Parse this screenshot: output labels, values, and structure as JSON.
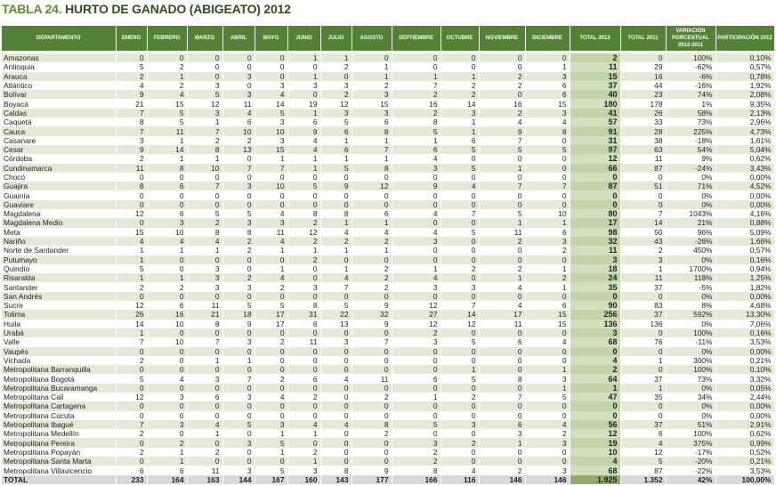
{
  "title": {
    "number": "TABLA 24.",
    "text": "HURTO DE GANADO (ABIGEATO) 2012"
  },
  "colors": {
    "header": "#538135",
    "stripe": "#e3ebd6",
    "total_2012": "#c2d3a8",
    "total_row": "#d9d9d9"
  },
  "columns": [
    "DEPARTAMENTO",
    "ENERO",
    "FEBRERO",
    "MARZO",
    "ABRIL",
    "MAYO",
    "JUNIO",
    "JULIO",
    "AGOSTO",
    "SEPTIEMBRE",
    "OCTUBRE",
    "NOVIEMBRE",
    "DICIEMBRE",
    "TOTAL 2012",
    "TOTAL 2011",
    "VARIACIÓN PORCENTUAL 2012-2011",
    "PARTICIPACIÓN 2012"
  ],
  "rows": [
    [
      "Amazonas",
      "0",
      "0",
      "0",
      "0",
      "0",
      "1",
      "1",
      "0",
      "0",
      "0",
      "0",
      "0",
      "2",
      "0",
      "100%",
      "0,10%"
    ],
    [
      "Antioquia",
      "5",
      "2",
      "0",
      "0",
      "0",
      "0",
      "2",
      "1",
      "0",
      "0",
      "0",
      "1",
      "11",
      "29",
      "-62%",
      "0,57%"
    ],
    [
      "Arauca",
      "2",
      "1",
      "0",
      "3",
      "0",
      "1",
      "0",
      "1",
      "1",
      "1",
      "2",
      "3",
      "15",
      "16",
      "-6%",
      "0,78%"
    ],
    [
      "Atlántico",
      "4",
      "2",
      "3",
      "0",
      "3",
      "3",
      "3",
      "2",
      "7",
      "2",
      "2",
      "6",
      "37",
      "44",
      "-16%",
      "1,92%"
    ],
    [
      "Bolívar",
      "9",
      "4",
      "5",
      "3",
      "4",
      "0",
      "2",
      "3",
      "2",
      "2",
      "0",
      "6",
      "40",
      "23",
      "74%",
      "2,08%"
    ],
    [
      "Boyacá",
      "21",
      "15",
      "12",
      "11",
      "14",
      "19",
      "12",
      "15",
      "16",
      "14",
      "16",
      "15",
      "180",
      "178",
      "1%",
      "9,35%"
    ],
    [
      "Caldas",
      "7",
      "5",
      "3",
      "4",
      "5",
      "1",
      "3",
      "3",
      "2",
      "3",
      "2",
      "3",
      "41",
      "26",
      "58%",
      "2,13%"
    ],
    [
      "Caquetá",
      "8",
      "5",
      "1",
      "6",
      "3",
      "6",
      "5",
      "6",
      "8",
      "1",
      "4",
      "4",
      "57",
      "33",
      "73%",
      "2,96%"
    ],
    [
      "Cauca",
      "7",
      "11",
      "7",
      "10",
      "10",
      "9",
      "6",
      "8",
      "5",
      "1",
      "9",
      "8",
      "91",
      "28",
      "225%",
      "4,73%"
    ],
    [
      "Casanare",
      "3",
      "1",
      "2",
      "2",
      "3",
      "4",
      "1",
      "1",
      "1",
      "6",
      "7",
      "0",
      "31",
      "38",
      "-18%",
      "1,61%"
    ],
    [
      "Cesar",
      "9",
      "14",
      "8",
      "13",
      "15",
      "4",
      "6",
      "7",
      "6",
      "5",
      "5",
      "5",
      "97",
      "63",
      "54%",
      "5,04%"
    ],
    [
      "Córdoba",
      "2",
      "1",
      "1",
      "0",
      "1",
      "1",
      "1",
      "1",
      "4",
      "0",
      "0",
      "0",
      "12",
      "11",
      "9%",
      "0,62%"
    ],
    [
      "Cundinamarca",
      "11",
      "8",
      "10",
      "7",
      "7",
      "1",
      "5",
      "8",
      "3",
      "5",
      "1",
      "0",
      "66",
      "87",
      "-24%",
      "3,43%"
    ],
    [
      "Chocó",
      "0",
      "0",
      "0",
      "0",
      "0",
      "0",
      "0",
      "0",
      "0",
      "0",
      "0",
      "0",
      "0",
      "0",
      "0%",
      "0,00%"
    ],
    [
      "Guajira",
      "8",
      "6",
      "7",
      "3",
      "10",
      "5",
      "9",
      "12",
      "9",
      "4",
      "7",
      "7",
      "87",
      "51",
      "71%",
      "4,52%"
    ],
    [
      "Guainía",
      "0",
      "0",
      "0",
      "0",
      "0",
      "0",
      "0",
      "0",
      "0",
      "0",
      "0",
      "0",
      "0",
      "0",
      "0%",
      "0,00%"
    ],
    [
      "Guaviare",
      "0",
      "0",
      "0",
      "0",
      "0",
      "0",
      "0",
      "0",
      "0",
      "0",
      "0",
      "0",
      "0",
      "0",
      "0%",
      "0,00%"
    ],
    [
      "Magdalena",
      "12",
      "6",
      "5",
      "5",
      "4",
      "8",
      "8",
      "6",
      "4",
      "7",
      "5",
      "10",
      "80",
      "7",
      "1043%",
      "4,16%"
    ],
    [
      "Magdalena Medio",
      "0",
      "3",
      "2",
      "3",
      "3",
      "2",
      "1",
      "1",
      "0",
      "0",
      "1",
      "1",
      "17",
      "14",
      "21%",
      "0,88%"
    ],
    [
      "Meta",
      "15",
      "10",
      "8",
      "8",
      "11",
      "12",
      "4",
      "4",
      "4",
      "5",
      "11",
      "6",
      "98",
      "50",
      "96%",
      "5,09%"
    ],
    [
      "Nariño",
      "4",
      "4",
      "4",
      "2",
      "4",
      "2",
      "2",
      "2",
      "3",
      "0",
      "2",
      "3",
      "32",
      "43",
      "-26%",
      "1,66%"
    ],
    [
      "Norte de Santander",
      "1",
      "1",
      "1",
      "2",
      "1",
      "1",
      "1",
      "1",
      "0",
      "0",
      "0",
      "2",
      "11",
      "2",
      "450%",
      "0,57%"
    ],
    [
      "Putumayo",
      "1",
      "0",
      "0",
      "0",
      "0",
      "2",
      "0",
      "0",
      "0",
      "0",
      "0",
      "0",
      "3",
      "3",
      "0%",
      "0,16%"
    ],
    [
      "Quindío",
      "5",
      "0",
      "3",
      "0",
      "1",
      "0",
      "1",
      "2",
      "1",
      "2",
      "2",
      "1",
      "18",
      "1",
      "1700%",
      "0,94%"
    ],
    [
      "Risaralda",
      "1",
      "1",
      "3",
      "2",
      "4",
      "0",
      "4",
      "2",
      "4",
      "0",
      "1",
      "2",
      "24",
      "11",
      "118%",
      "1,25%"
    ],
    [
      "Santander",
      "2",
      "2",
      "3",
      "3",
      "2",
      "3",
      "7",
      "2",
      "3",
      "3",
      "4",
      "1",
      "35",
      "37",
      "-5%",
      "1,82%"
    ],
    [
      "San Andrés",
      "0",
      "0",
      "0",
      "0",
      "0",
      "0",
      "0",
      "0",
      "0",
      "0",
      "0",
      "0",
      "0",
      "0",
      "0%",
      "0,00%"
    ],
    [
      "Sucre",
      "12",
      "6",
      "11",
      "5",
      "5",
      "8",
      "5",
      "9",
      "12",
      "7",
      "4",
      "6",
      "90",
      "83",
      "8%",
      "4,68%"
    ],
    [
      "Tolima",
      "26",
      "16",
      "21",
      "18",
      "17",
      "31",
      "22",
      "32",
      "27",
      "14",
      "17",
      "15",
      "256",
      "37",
      "592%",
      "13,30%"
    ],
    [
      "Huila",
      "14",
      "10",
      "8",
      "9",
      "17",
      "6",
      "13",
      "9",
      "12",
      "12",
      "11",
      "15",
      "136",
      "136",
      "0%",
      "7,06%"
    ],
    [
      "Urabá",
      "1",
      "0",
      "0",
      "0",
      "0",
      "0",
      "0",
      "0",
      "2",
      "0",
      "0",
      "0",
      "3",
      "0",
      "100%",
      "0,16%"
    ],
    [
      "Valle",
      "7",
      "10",
      "7",
      "3",
      "2",
      "11",
      "3",
      "7",
      "3",
      "5",
      "6",
      "4",
      "68",
      "76",
      "-11%",
      "3,53%"
    ],
    [
      "Vaupés",
      "0",
      "0",
      "0",
      "0",
      "0",
      "0",
      "0",
      "0",
      "0",
      "0",
      "0",
      "0",
      "0",
      "0",
      "0%",
      "0,00%"
    ],
    [
      "Vichada",
      "2",
      "0",
      "1",
      "1",
      "0",
      "0",
      "0",
      "0",
      "0",
      "0",
      "0",
      "0",
      "4",
      "1",
      "300%",
      "0,21%"
    ],
    [
      "Metropolitana Barranquilla",
      "0",
      "0",
      "0",
      "0",
      "0",
      "0",
      "0",
      "0",
      "0",
      "1",
      "0",
      "1",
      "2",
      "0",
      "100%",
      "0,10%"
    ],
    [
      "Metropolitana Bogotá",
      "5",
      "4",
      "3",
      "7",
      "2",
      "6",
      "4",
      "11",
      "6",
      "5",
      "8",
      "3",
      "64",
      "37",
      "73%",
      "3,32%"
    ],
    [
      "Metropolitana Bucaramanga",
      "0",
      "0",
      "0",
      "0",
      "0",
      "0",
      "0",
      "0",
      "0",
      "0",
      "0",
      "1",
      "1",
      "1",
      "0%",
      "0,05%"
    ],
    [
      "Metropolitana Cali",
      "12",
      "3",
      "6",
      "3",
      "4",
      "2",
      "0",
      "2",
      "1",
      "2",
      "7",
      "5",
      "47",
      "35",
      "34%",
      "2,44%"
    ],
    [
      "Metropolitana Cartagena",
      "0",
      "0",
      "0",
      "0",
      "0",
      "0",
      "0",
      "0",
      "0",
      "0",
      "0",
      "0",
      "0",
      "0",
      "0%",
      "0,00%"
    ],
    [
      "Metropolitana Cúcuta",
      "0",
      "0",
      "0",
      "0",
      "0",
      "0",
      "0",
      "0",
      "0",
      "0",
      "0",
      "0",
      "0",
      "0",
      "0%",
      "0,00%"
    ],
    [
      "Metropolitana Ibagué",
      "7",
      "3",
      "4",
      "5",
      "3",
      "4",
      "4",
      "8",
      "5",
      "3",
      "6",
      "4",
      "56",
      "37",
      "51%",
      "2,91%"
    ],
    [
      "Metropolitana Medellín",
      "2",
      "0",
      "1",
      "0",
      "1",
      "1",
      "0",
      "2",
      "0",
      "0",
      "3",
      "2",
      "12",
      "6",
      "100%",
      "0,62%"
    ],
    [
      "Metropolitana Pereira",
      "0",
      "2",
      "0",
      "3",
      "5",
      "0",
      "0",
      "0",
      "3",
      "2",
      "1",
      "3",
      "19",
      "4",
      "375%",
      "0,99%"
    ],
    [
      "Metropolitana Popayán",
      "2",
      "1",
      "2",
      "0",
      "1",
      "2",
      "0",
      "0",
      "2",
      "0",
      "0",
      "0",
      "10",
      "12",
      "-17%",
      "0,52%"
    ],
    [
      "Metropolitana Santa Marta",
      "0",
      "1",
      "0",
      "0",
      "0",
      "1",
      "0",
      "0",
      "2",
      "0",
      "0",
      "0",
      "4",
      "5",
      "-20%",
      "0,21%"
    ],
    [
      "Metropolitana Villavicencio",
      "6",
      "6",
      "11",
      "3",
      "5",
      "3",
      "8",
      "9",
      "8",
      "4",
      "2",
      "3",
      "68",
      "87",
      "-22%",
      "3,53%"
    ]
  ],
  "total": [
    "TOTAL",
    "233",
    "164",
    "163",
    "144",
    "167",
    "160",
    "143",
    "177",
    "166",
    "116",
    "146",
    "146",
    "1.925",
    "1.352",
    "42%",
    "100,00%"
  ]
}
